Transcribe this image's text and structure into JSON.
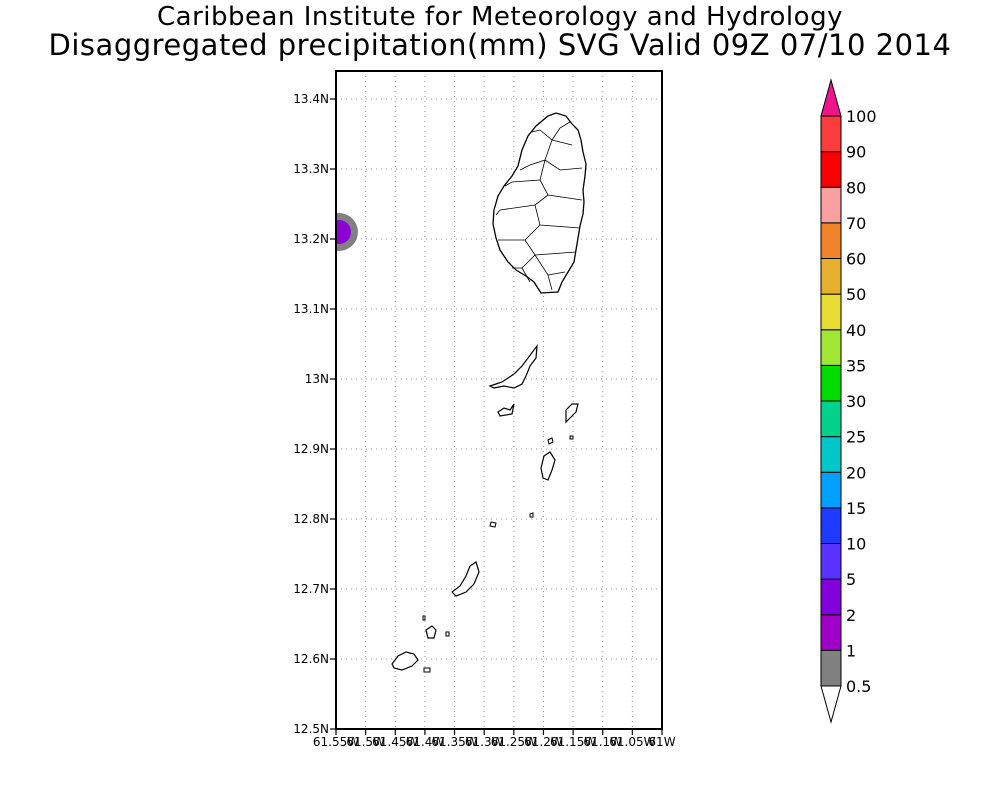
{
  "header": {
    "title": "Caribbean Institute for Meteorology and Hydrology",
    "subtitle": "Disaggregated precipitation(mm) SVG Valid 09Z 07/10 2014"
  },
  "map": {
    "lon_range": [
      -61.55,
      -61.0
    ],
    "lat_range": [
      12.5,
      13.44
    ],
    "lat_ticks": [
      {
        "value": 13.4,
        "label": "13.4N"
      },
      {
        "value": 13.3,
        "label": "13.3N"
      },
      {
        "value": 13.2,
        "label": "13.2N"
      },
      {
        "value": 13.1,
        "label": "13.1N"
      },
      {
        "value": 13.0,
        "label": "13N"
      },
      {
        "value": 12.9,
        "label": "12.9N"
      },
      {
        "value": 12.8,
        "label": "12.8N"
      },
      {
        "value": 12.7,
        "label": "12.7N"
      },
      {
        "value": 12.6,
        "label": "12.6N"
      },
      {
        "value": 12.5,
        "label": "12.5N"
      }
    ],
    "lon_ticks": [
      {
        "value": -61.55,
        "label": "61.55W"
      },
      {
        "value": -61.5,
        "label": "61.5W"
      },
      {
        "value": -61.45,
        "label": "61.45W"
      },
      {
        "value": -61.4,
        "label": "61.4W"
      },
      {
        "value": -61.35,
        "label": "61.35W"
      },
      {
        "value": -61.3,
        "label": "61.3W"
      },
      {
        "value": -61.25,
        "label": "61.25W"
      },
      {
        "value": -61.2,
        "label": "61.2W"
      },
      {
        "value": -61.15,
        "label": "61.15W"
      },
      {
        "value": -61.1,
        "label": "61.1W"
      },
      {
        "value": -61.05,
        "label": "61.05W"
      },
      {
        "value": -61.0,
        "label": "61W"
      }
    ],
    "grid": true,
    "precip_spot": {
      "lon": -61.545,
      "lat": 13.21,
      "outer_color": "#808080",
      "inner_color": "#8a00d4"
    }
  },
  "colorbar": {
    "levels": [
      {
        "label": "0.5",
        "color": "#808080"
      },
      {
        "label": "1",
        "color": "#a000c8"
      },
      {
        "label": "2",
        "color": "#8200dc"
      },
      {
        "label": "5",
        "color": "#5a32ff"
      },
      {
        "label": "10",
        "color": "#1e3cff"
      },
      {
        "label": "15",
        "color": "#00a0ff"
      },
      {
        "label": "20",
        "color": "#00c8c8"
      },
      {
        "label": "25",
        "color": "#00d28c"
      },
      {
        "label": "30",
        "color": "#00dc00"
      },
      {
        "label": "35",
        "color": "#a0e632"
      },
      {
        "label": "40",
        "color": "#e6dc32"
      },
      {
        "label": "50",
        "color": "#e6af2d"
      },
      {
        "label": "60",
        "color": "#f08228"
      },
      {
        "label": "70",
        "color": "#faa0a0"
      },
      {
        "label": "80",
        "color": "#fa0000"
      },
      {
        "label": "90",
        "color": "#fa3c3c"
      },
      {
        "label": "100",
        "color": ""
      }
    ],
    "top_arrow_color": "#f0148c",
    "bottom_arrow_color": "#ffffff"
  }
}
